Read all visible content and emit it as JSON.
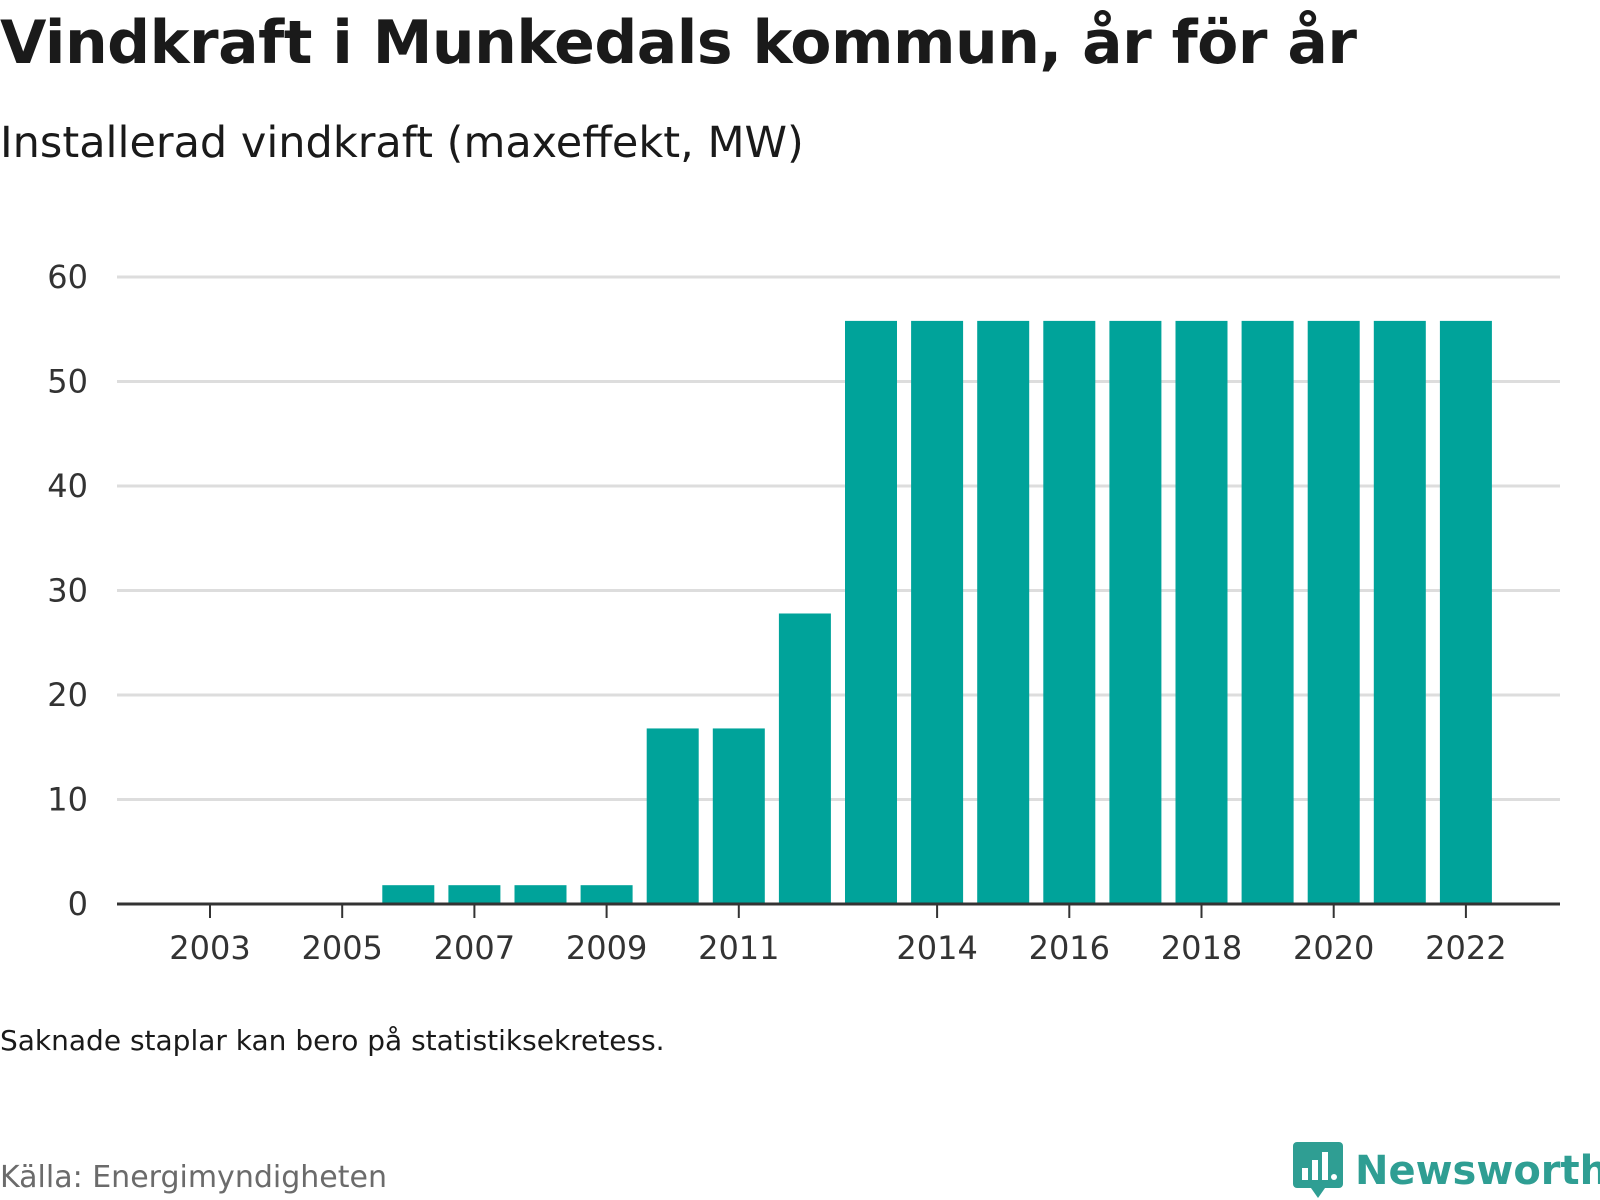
{
  "title": "Vindkraft i Munkedals kommun, år för år",
  "subtitle": "Installerad vindkraft (maxeffekt, MW)",
  "note": "Saknade staplar kan bero på statistiksekretess.",
  "source": "Källa: Energimyndigheten",
  "brand": {
    "name": "Newsworthy",
    "color": "#2f9e93",
    "icon": "newsworthy-logo-icon"
  },
  "colors": {
    "bar": "#00a39a",
    "grid": "#dddddd",
    "axis": "#333333"
  },
  "chart_data": {
    "type": "bar",
    "categories": [
      "2003",
      "2004",
      "2005",
      "2006",
      "2007",
      "2008",
      "2009",
      "2010",
      "2011",
      "2012",
      "2013",
      "2014",
      "2015",
      "2016",
      "2017",
      "2018",
      "2019",
      "2020",
      "2021",
      "2022"
    ],
    "values": [
      0,
      0,
      0,
      1.8,
      1.8,
      1.8,
      1.8,
      16.8,
      16.8,
      27.8,
      55.8,
      55.8,
      55.8,
      55.8,
      55.8,
      55.8,
      55.8,
      55.8,
      55.8,
      55.8
    ],
    "x_tick_labels": [
      "2003",
      "2005",
      "2007",
      "2009",
      "2011",
      "2014",
      "2016",
      "2018",
      "2020",
      "2022"
    ],
    "y_ticks": [
      0,
      10,
      20,
      30,
      40,
      50,
      60
    ],
    "ylim": [
      0,
      60
    ],
    "xlabel": "",
    "ylabel": "",
    "grid": true,
    "legend": "none"
  }
}
